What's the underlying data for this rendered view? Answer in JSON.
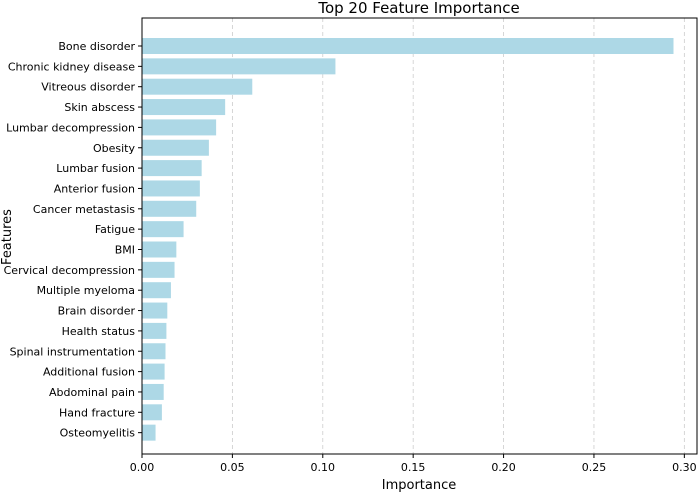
{
  "chart_data": {
    "type": "bar",
    "orientation": "horizontal",
    "title": "Top 20 Feature Importance",
    "xlabel": "Importance",
    "ylabel": "Features",
    "categories": [
      "Bone disorder",
      "Chronic kidney disease",
      "Vitreous disorder",
      "Skin abscess",
      "Lumbar decompression",
      "Obesity",
      "Lumbar fusion",
      "Anterior fusion",
      "Cancer metastasis",
      "Fatigue",
      "BMI",
      "Cervical decompression",
      "Multiple myeloma",
      "Brain disorder",
      "Health status",
      "Spinal instrumentation",
      "Additional fusion",
      "Abdominal pain",
      "Hand fracture",
      "Osteomyelitis"
    ],
    "values": [
      0.294,
      0.107,
      0.061,
      0.046,
      0.041,
      0.037,
      0.033,
      0.032,
      0.03,
      0.023,
      0.019,
      0.018,
      0.016,
      0.014,
      0.0135,
      0.013,
      0.0125,
      0.012,
      0.011,
      0.0075
    ],
    "xlim": [
      0,
      0.307
    ],
    "xticks": [
      "0.00",
      "0.05",
      "0.10",
      "0.15",
      "0.20",
      "0.25",
      "0.30"
    ],
    "xtick_values": [
      0,
      0.05,
      0.1,
      0.15,
      0.2,
      0.25,
      0.3
    ],
    "grid": "vertical-dashed",
    "legend": "none",
    "bar_color": "#add8e6"
  }
}
